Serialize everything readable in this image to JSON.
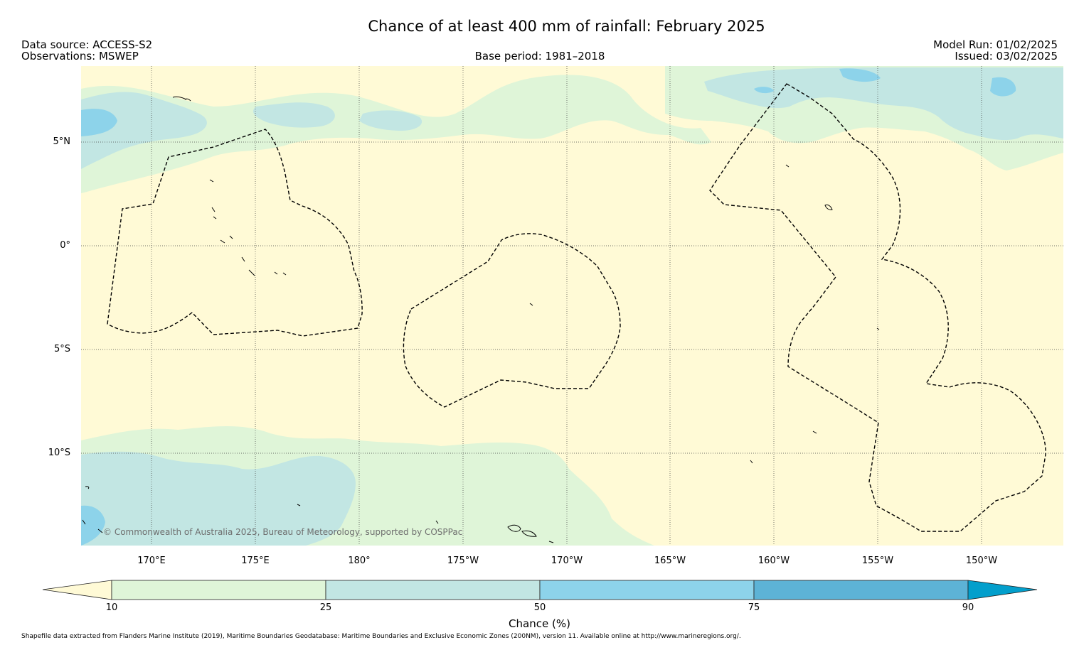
{
  "header": {
    "title": "Chance of at least 400 mm of rainfall: February 2025",
    "data_source": "Data source: ACCESS-S2",
    "observations": "Observations: MSWEP",
    "base_period": "Base period: 1981–2018",
    "model_run": "Model Run: 01/02/2025",
    "issued": "Issued: 03/02/2025"
  },
  "map": {
    "lat_labels": [
      "5°N",
      "0°",
      "5°S",
      "10°S"
    ],
    "lon_labels": [
      "170°E",
      "175°E",
      "180°",
      "175°W",
      "170°W",
      "165°W",
      "160°W",
      "155°W",
      "150°W"
    ],
    "credit": "© Commonwealth of Australia 2025, Bureau of Meteorology, supported by COSPPac",
    "ocean_color": "#fffad6"
  },
  "colorbar": {
    "title": "Chance (%)",
    "ticks": [
      "10",
      "25",
      "50",
      "75",
      "90"
    ],
    "colors": [
      "#fffad6",
      "#dff5d8",
      "#c2e6e3",
      "#8dd3ea",
      "#5db3d6",
      "#039fcc"
    ]
  },
  "footnote": "Shapefile data extracted from Flanders Marine Institute (2019), Maritime Boundaries Geodatabase: Maritime Boundaries and Exclusive Economic Zones (200NM), version 11. Available online at http://www.marineregions.org/."
}
